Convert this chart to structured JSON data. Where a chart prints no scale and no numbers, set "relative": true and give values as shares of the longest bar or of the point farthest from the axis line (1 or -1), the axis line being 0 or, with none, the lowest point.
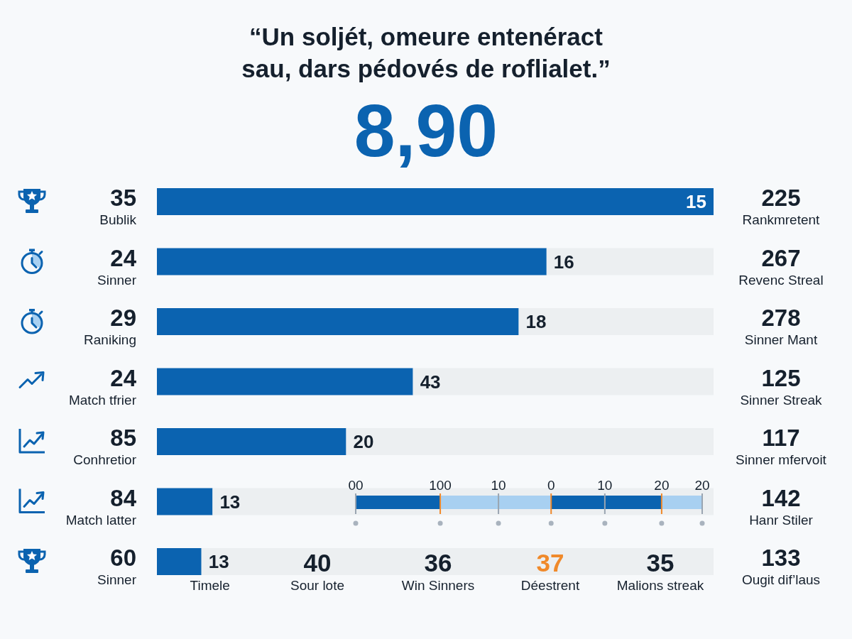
{
  "chart_data": [
    {
      "type": "bar",
      "orientation": "horizontal",
      "relative": true,
      "stacked": true,
      "title": "“Un soljét, omeure entenéract sau, dars pédovés de roflialet.”",
      "subtitle": "8,90",
      "categories": [
        "Bublik",
        "Sinner",
        "Raniking",
        "Match tfrier",
        "Conhretior",
        "Match latter",
        "Sinner"
      ],
      "series": [
        {
          "color": "#0b63b0",
          "values": [
            1,
            0.7,
            0.65,
            0.46,
            0.34,
            0.1,
            0.08
          ]
        },
        {
          "color": "#eceff1",
          "values": [
            0,
            0.3,
            0.35,
            0.54,
            0.66,
            0.9,
            0.92
          ]
        }
      ],
      "annotations": [
        "15",
        "16",
        "18",
        "43",
        "20",
        "13",
        "13",
        "35",
        "24",
        "29",
        "24",
        "85",
        "84",
        "60",
        "225",
        "267",
        "278",
        "125",
        "117",
        "142",
        "133",
        "Rankmretent",
        "Revenc Streal",
        "Sinner Mant",
        "Sinner Streak",
        "Sinner mfervoit",
        "Hanr Stiler",
        "Ougit dif’laus",
        "Timele",
        "40",
        "Sour lote",
        "36",
        "Win Sinners",
        "37",
        "Déestrent",
        "35",
        "Malions streak"
      ]
    },
    {
      "type": "bar",
      "orientation": "horizontal",
      "stacked": true,
      "relative": true,
      "categories": [
        null
      ],
      "series": [
        {
          "color": "#0b63b0",
          "values": [
            0.244
          ]
        },
        {
          "color": "#a8d0f1",
          "values": [
            0.168
          ]
        },
        {
          "color": "#a8d0f1",
          "values": [
            0.152
          ]
        },
        {
          "color": "#0b63b0",
          "values": [
            0.155
          ]
        },
        {
          "color": "#0b63b0",
          "values": [
            0.164
          ]
        },
        {
          "color": "#a8d0f1",
          "values": [
            0.117
          ]
        }
      ],
      "annotations": [
        "00",
        {
          "text": "100",
          "x": 0.244
        },
        {
          "text": "10",
          "x": 0.412
        },
        {
          "text": "0",
          "x": 0.564
        },
        {
          "text": "10",
          "x": 0.719
        },
        {
          "text": "20",
          "x": 0.883
        },
        "20"
      ]
    }
  ]
}
